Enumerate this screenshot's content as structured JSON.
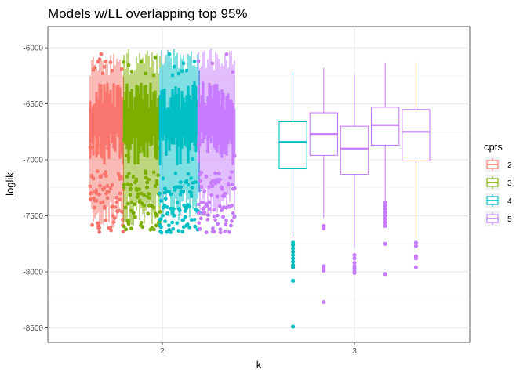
{
  "chart_data": {
    "type": "boxplot",
    "title": "Models w/LL overlapping top 95%",
    "xlabel": "k",
    "ylabel": "loglik",
    "x_categories": [
      "2",
      "3"
    ],
    "y_ticks": [
      -6000,
      -6500,
      -7000,
      -7500,
      -8000,
      -8500
    ],
    "y_tick_labels": [
      "-6000",
      "-6500",
      "-7000",
      "-7500",
      "-8000",
      "-8500"
    ],
    "ylim": [
      -8630,
      -5810
    ],
    "grid": true,
    "legend": {
      "title": "cpts",
      "position": "right",
      "entries": [
        {
          "label": "2",
          "color": "#F8766D"
        },
        {
          "label": "3",
          "color": "#7CAE00"
        },
        {
          "label": "4",
          "color": "#00BFC4"
        },
        {
          "label": "5",
          "color": "#C77CFF"
        }
      ]
    },
    "series": [
      {
        "k": "3",
        "cpts": "4",
        "color": "#00BFC4",
        "q1": -7080,
        "median": -6840,
        "q3": -6660,
        "whisker_low": -7690,
        "whisker_high": -6220,
        "outliers": [
          -7740,
          -7760,
          -7790,
          -7820,
          -7850,
          -7880,
          -7910,
          -7940,
          -7960,
          -8080,
          -8490
        ]
      },
      {
        "k": "3",
        "cpts": "5",
        "color": "#C77CFF",
        "q1": -6960,
        "median": -6770,
        "q3": -6580,
        "whisker_low": -7520,
        "whisker_high": -6180,
        "outliers": [
          -7590,
          -7610,
          -7950,
          -7970,
          -7990,
          -8270
        ]
      },
      {
        "k": "3",
        "cpts": "5",
        "color": "#C77CFF",
        "q1": -7130,
        "median": -6900,
        "q3": -6700,
        "whisker_low": -7780,
        "whisker_high": -6240,
        "outliers": [
          -7850,
          -7880,
          -7920,
          -7950,
          -7970,
          -7990,
          -8010
        ]
      },
      {
        "k": "3",
        "cpts": "5",
        "color": "#C77CFF",
        "q1": -6870,
        "median": -6690,
        "q3": -6530,
        "whisker_low": -7360,
        "whisker_high": -6130,
        "outliers": [
          -7380,
          -7410,
          -7440,
          -7470,
          -7500,
          -7530,
          -7560,
          -7590,
          -7750,
          -8020
        ]
      },
      {
        "k": "3",
        "cpts": "5",
        "color": "#C77CFF",
        "q1": -7010,
        "median": -6750,
        "q3": -6550,
        "whisker_low": -7700,
        "whisker_high": -6130,
        "outliers": [
          -7740,
          -7770,
          -7860,
          -7880,
          -7960
        ]
      }
    ]
  }
}
